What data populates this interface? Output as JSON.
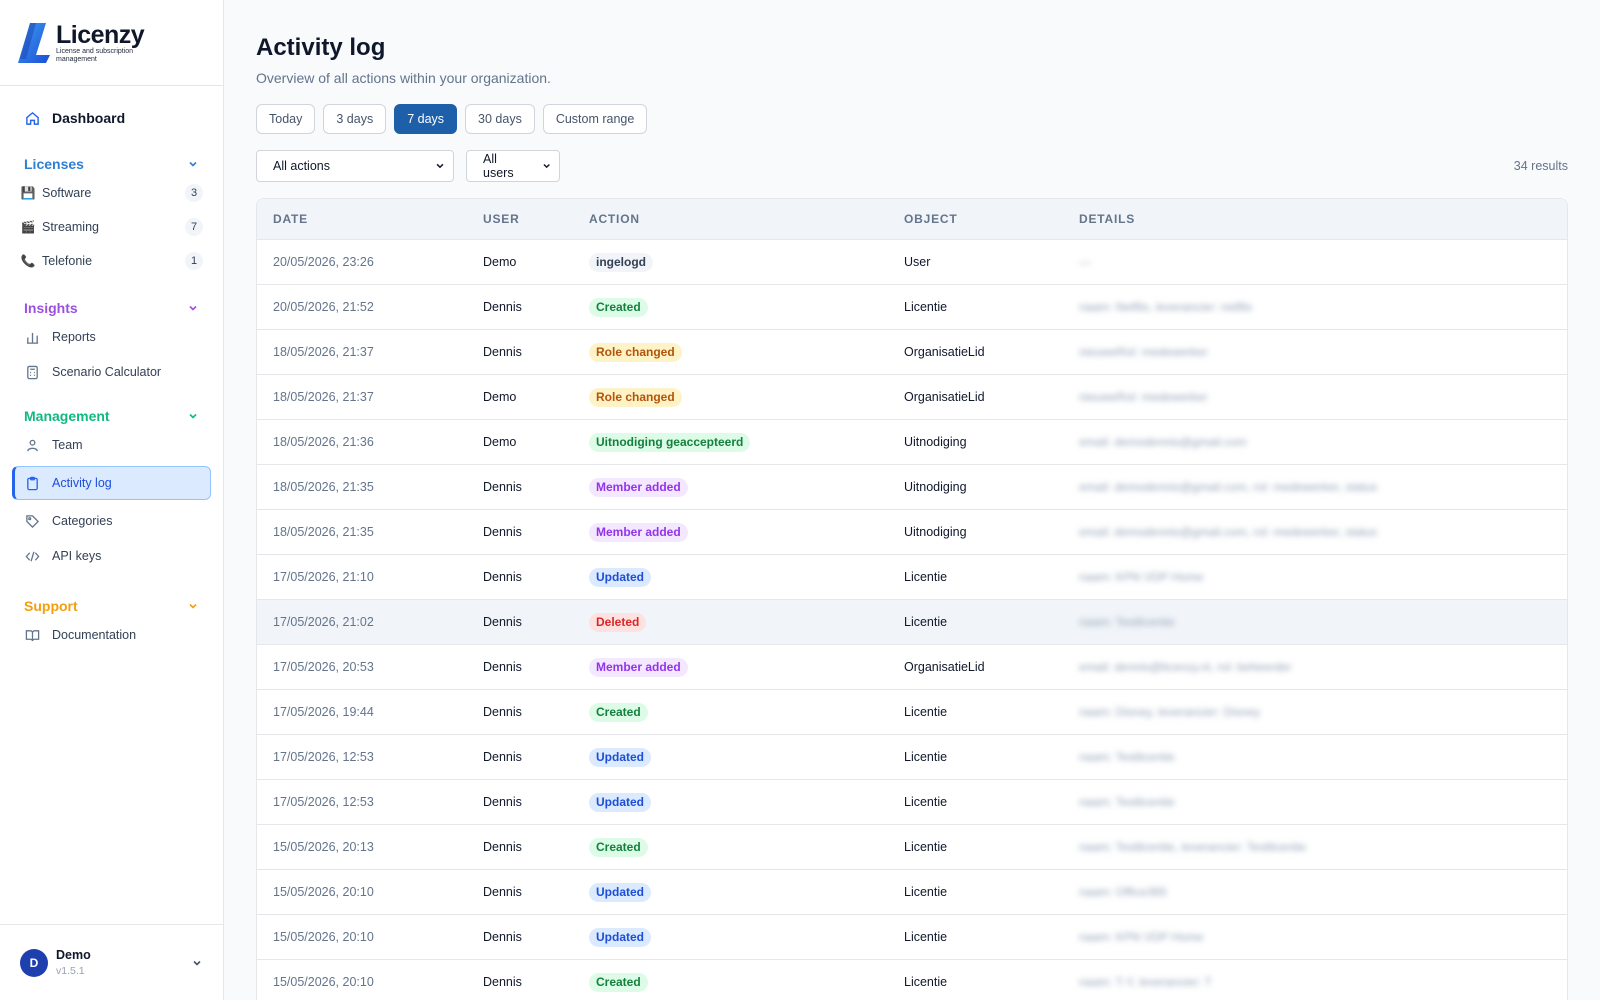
{
  "brand": {
    "name": "Licenzy",
    "tagline": "License and subscription management"
  },
  "nav": {
    "dashboard": "Dashboard",
    "licenses": {
      "title": "Licenses",
      "color": "#2f80d1",
      "items": [
        {
          "label": "Software",
          "count": "3",
          "icon": "floppy-icon",
          "glyph": "💾"
        },
        {
          "label": "Streaming",
          "count": "7",
          "icon": "clapper-icon",
          "glyph": "🎬"
        },
        {
          "label": "Telefonie",
          "count": "1",
          "icon": "phone-icon",
          "glyph": "📞"
        }
      ]
    },
    "insights": {
      "title": "Insights",
      "color": "#9b51e0",
      "items": [
        {
          "label": "Reports",
          "icon": "bar-chart-icon"
        },
        {
          "label": "Scenario Calculator",
          "icon": "calculator-icon"
        }
      ]
    },
    "management": {
      "title": "Management",
      "color": "#10b981",
      "items": [
        {
          "label": "Team",
          "icon": "team-icon"
        },
        {
          "label": "Activity log",
          "icon": "clipboard-icon"
        },
        {
          "label": "Categories",
          "icon": "tag-icon"
        },
        {
          "label": "API keys",
          "icon": "code-icon"
        }
      ]
    },
    "support": {
      "title": "Support",
      "color": "#f59e0b",
      "items": [
        {
          "label": "Documentation",
          "icon": "book-icon"
        }
      ]
    }
  },
  "user": {
    "initial": "D",
    "name": "Demo",
    "version": "v1.5.1"
  },
  "page": {
    "title": "Activity log",
    "subtitle": "Overview of all actions within your organization."
  },
  "ranges": [
    "Today",
    "3 days",
    "7 days",
    "30 days",
    "Custom range"
  ],
  "active_range": "7 days",
  "filters": {
    "action": "All actions",
    "user": "All users",
    "results": "34 results"
  },
  "table": {
    "columns": [
      "DATE",
      "USER",
      "ACTION",
      "OBJECT",
      "DETAILS"
    ],
    "rows": [
      {
        "date": "20/05/2026, 23:26",
        "user": "Demo",
        "action": "ingelogd",
        "tone": "gray",
        "object": "User",
        "details": "—"
      },
      {
        "date": "20/05/2026, 21:52",
        "user": "Dennis",
        "action": "Created",
        "tone": "green",
        "object": "Licentie",
        "details": "naam: Netflix, leverancier: netflix"
      },
      {
        "date": "18/05/2026, 21:37",
        "user": "Dennis",
        "action": "Role changed",
        "tone": "amber",
        "object": "OrganisatieLid",
        "details": "nieuweRol: medewerker"
      },
      {
        "date": "18/05/2026, 21:37",
        "user": "Demo",
        "action": "Role changed",
        "tone": "amber",
        "object": "OrganisatieLid",
        "details": "nieuweRol: medewerker"
      },
      {
        "date": "18/05/2026, 21:36",
        "user": "Demo",
        "action": "Uitnodiging geaccepteerd",
        "tone": "green",
        "object": "Uitnodiging",
        "details": "email: demodennis@gmail.com"
      },
      {
        "date": "18/05/2026, 21:35",
        "user": "Dennis",
        "action": "Member added",
        "tone": "purple",
        "object": "Uitnodiging",
        "details": "email: demodennis@gmail.com, rol: medewerker, status"
      },
      {
        "date": "18/05/2026, 21:35",
        "user": "Dennis",
        "action": "Member added",
        "tone": "purple",
        "object": "Uitnodiging",
        "details": "email: demodennis@gmail.com, rol: medewerker, status"
      },
      {
        "date": "17/05/2026, 21:10",
        "user": "Dennis",
        "action": "Updated",
        "tone": "blue",
        "object": "Licentie",
        "details": "naam: KPN VDP Home"
      },
      {
        "date": "17/05/2026, 21:02",
        "user": "Dennis",
        "action": "Deleted",
        "tone": "red",
        "object": "Licentie",
        "details": "naam: Testlicentie"
      },
      {
        "date": "17/05/2026, 20:53",
        "user": "Dennis",
        "action": "Member added",
        "tone": "purple",
        "object": "OrganisatieLid",
        "details": "email: dennis@licenzy.nl, rol: beheerder"
      },
      {
        "date": "17/05/2026, 19:44",
        "user": "Dennis",
        "action": "Created",
        "tone": "green",
        "object": "Licentie",
        "details": "naam: Disney, leverancier: Disney"
      },
      {
        "date": "17/05/2026, 12:53",
        "user": "Dennis",
        "action": "Updated",
        "tone": "blue",
        "object": "Licentie",
        "details": "naam: Testlicentie"
      },
      {
        "date": "17/05/2026, 12:53",
        "user": "Dennis",
        "action": "Updated",
        "tone": "blue",
        "object": "Licentie",
        "details": "naam: Testlicentie"
      },
      {
        "date": "15/05/2026, 20:13",
        "user": "Dennis",
        "action": "Created",
        "tone": "green",
        "object": "Licentie",
        "details": "naam: Testlicentie, leverancier: Testlicentie"
      },
      {
        "date": "15/05/2026, 20:10",
        "user": "Dennis",
        "action": "Updated",
        "tone": "blue",
        "object": "Licentie",
        "details": "naam: Office365"
      },
      {
        "date": "15/05/2026, 20:10",
        "user": "Dennis",
        "action": "Updated",
        "tone": "blue",
        "object": "Licentie",
        "details": "naam: KPN VDP Home"
      },
      {
        "date": "15/05/2026, 20:10",
        "user": "Dennis",
        "action": "Created",
        "tone": "green",
        "object": "Licentie",
        "details": "naam: T-Y, leverancier: T"
      }
    ]
  }
}
